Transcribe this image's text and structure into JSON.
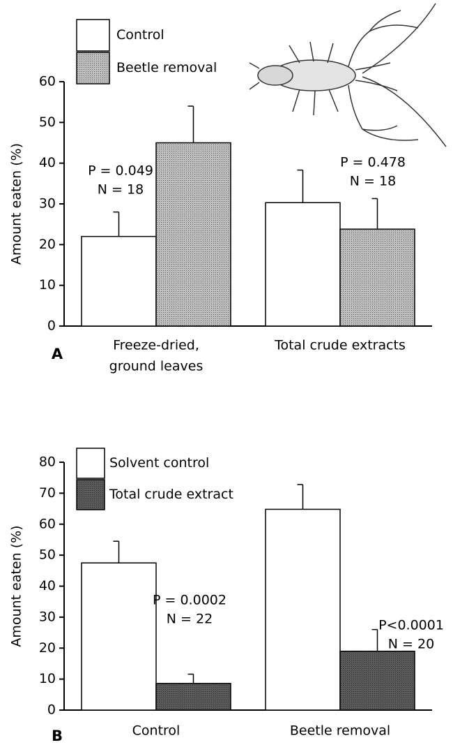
{
  "chart_data": [
    {
      "type": "bar",
      "panel_label": "A",
      "ylabel": "Amount eaten (%)",
      "categories": [
        [
          "Freeze-dried,",
          "ground leaves"
        ],
        [
          "Total crude extracts"
        ]
      ],
      "series": [
        {
          "name": "Control",
          "color": "#ffffff",
          "values": [
            22,
            30.3
          ],
          "errors": [
            6,
            8
          ]
        },
        {
          "name": "Beetle removal",
          "color": "#bdbdbd",
          "values": [
            45,
            23.8
          ],
          "errors": [
            9,
            7.5
          ]
        }
      ],
      "annotations": [
        [
          "P = 0.049",
          "N = 18"
        ],
        [
          "P = 0.478",
          "N = 18"
        ]
      ],
      "ylim": [
        0,
        60
      ],
      "yticks": [
        0,
        10,
        20,
        30,
        40,
        50,
        60
      ]
    },
    {
      "type": "bar",
      "panel_label": "B",
      "ylabel": "Amount eaten (%)",
      "categories": [
        [
          "Control"
        ],
        [
          "Beetle removal"
        ]
      ],
      "series": [
        {
          "name": "Solvent control",
          "color": "#ffffff",
          "values": [
            47.5,
            64.8
          ],
          "errors": [
            7,
            8
          ]
        },
        {
          "name": "Total crude extract",
          "color": "#5a5a5a",
          "values": [
            8.6,
            19
          ],
          "errors": [
            3,
            7
          ]
        }
      ],
      "annotations": [
        [
          "P = 0.0002",
          "N = 22"
        ],
        [
          "P<0.0001",
          "N = 20"
        ]
      ],
      "ylim": [
        0,
        80
      ],
      "yticks": [
        0,
        10,
        20,
        30,
        40,
        50,
        60,
        70,
        80
      ]
    }
  ]
}
